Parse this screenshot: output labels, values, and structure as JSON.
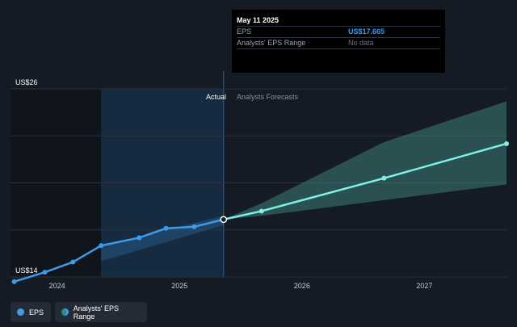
{
  "tooltip": {
    "date": "May 11 2025",
    "eps_label": "EPS",
    "eps_value": "US$17.665",
    "range_label": "Analysts' EPS Range",
    "range_value": "No data"
  },
  "legend": {
    "eps_label": "EPS",
    "range_label": "Analysts' EPS Range"
  },
  "colors": {
    "eps_line": "#3d9bea",
    "forecast_line": "#7ff0e6",
    "forecast_band": "#4ba89c",
    "background": "#151b24"
  },
  "chart_data": {
    "type": "line",
    "y_unit": "US$",
    "ylim": [
      14,
      26
    ],
    "y_ticks": [
      {
        "value": 26,
        "label": "US$26"
      },
      {
        "value": 14,
        "label": "US$14"
      }
    ],
    "xlim": [
      2023.62,
      2027.67
    ],
    "x_ticks": [
      {
        "value": 2024,
        "label": "2024"
      },
      {
        "value": 2025,
        "label": "2025"
      },
      {
        "value": 2026,
        "label": "2026"
      },
      {
        "value": 2027,
        "label": "2027"
      }
    ],
    "region_labels": {
      "actual": "Actual",
      "forecast": "Analysts Forecasts"
    },
    "actual_start": 2024.36,
    "actual_end": 2025.36,
    "series": [
      {
        "name": "EPS",
        "role": "actual",
        "points": [
          [
            2023.65,
            13.7
          ],
          [
            2023.9,
            14.3
          ],
          [
            2024.13,
            14.95
          ],
          [
            2024.36,
            16.0
          ],
          [
            2024.67,
            16.5
          ],
          [
            2024.89,
            17.1
          ],
          [
            2025.12,
            17.2
          ],
          [
            2025.36,
            17.665
          ]
        ]
      },
      {
        "name": "EPS",
        "role": "forecast",
        "points": [
          [
            2025.36,
            17.665
          ],
          [
            2025.67,
            18.2
          ],
          [
            2026.67,
            20.3
          ],
          [
            2027.67,
            22.5
          ]
        ]
      }
    ],
    "actual_range": {
      "upper": [
        [
          2024.36,
          16.0
        ],
        [
          2025.36,
          17.9
        ]
      ],
      "lower": [
        [
          2024.36,
          15.0
        ],
        [
          2025.36,
          17.3
        ]
      ]
    },
    "forecast_range": {
      "upper": [
        [
          2025.36,
          17.665
        ],
        [
          2025.67,
          18.7
        ],
        [
          2026.67,
          22.6
        ],
        [
          2027.67,
          25.2
        ]
      ],
      "lower": [
        [
          2025.36,
          17.665
        ],
        [
          2025.67,
          17.9
        ],
        [
          2026.67,
          18.9
        ],
        [
          2027.67,
          19.9
        ]
      ]
    },
    "grid": true
  }
}
